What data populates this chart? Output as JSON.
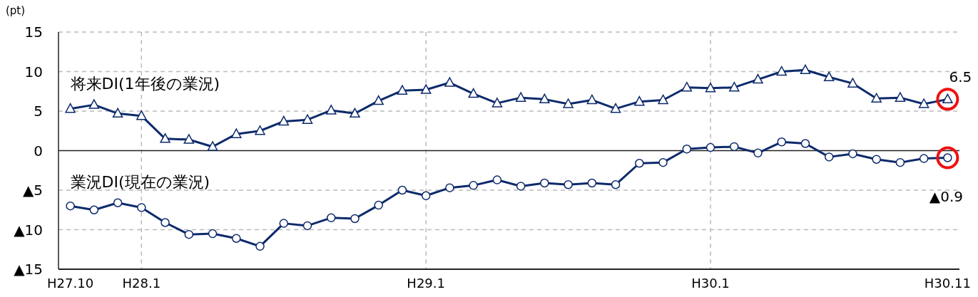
{
  "chart_data": {
    "type": "line",
    "categories": [
      "H27.10",
      null,
      null,
      "H28.1",
      null,
      null,
      null,
      null,
      null,
      null,
      null,
      null,
      null,
      null,
      null,
      "H29.1",
      null,
      null,
      null,
      null,
      null,
      null,
      null,
      null,
      null,
      null,
      null,
      "H30.1",
      null,
      null,
      null,
      null,
      null,
      null,
      null,
      null,
      null,
      "H30.11"
    ],
    "series": [
      {
        "name": "将来DI(1年後の業況)",
        "color": "#0d2a6b",
        "marker": "triangle",
        "values": [
          5.3,
          5.8,
          4.7,
          4.4,
          1.5,
          1.4,
          0.5,
          2.1,
          2.5,
          3.7,
          3.9,
          5.1,
          4.7,
          6.3,
          7.6,
          7.7,
          8.6,
          7.2,
          6.0,
          6.7,
          6.5,
          5.9,
          6.4,
          5.3,
          6.2,
          6.4,
          8.0,
          7.9,
          8.0,
          9.0,
          10.0,
          10.2,
          9.3,
          8.5,
          6.6,
          6.7,
          5.9,
          6.5
        ]
      },
      {
        "name": "業況DI(現在の業況)",
        "color": "#0d2a6b",
        "marker": "circle",
        "values": [
          -7.0,
          -7.5,
          -6.6,
          -7.2,
          -9.1,
          -10.6,
          -10.5,
          -11.1,
          -12.1,
          -9.2,
          -9.5,
          -8.5,
          -8.6,
          -6.9,
          -5.0,
          -5.7,
          -4.7,
          -4.4,
          -3.7,
          -4.5,
          -4.1,
          -4.3,
          -4.1,
          -4.3,
          -1.6,
          -1.5,
          0.2,
          0.4,
          0.5,
          -0.3,
          1.1,
          0.9,
          -0.8,
          -0.4,
          -1.1,
          -1.5,
          -1.0,
          -0.9
        ]
      }
    ],
    "ylim": [
      -15,
      15
    ],
    "yticks": [
      {
        "value": -15,
        "label": "▲15"
      },
      {
        "value": -10,
        "label": "▲10"
      },
      {
        "value": -5,
        "label": "▲5"
      },
      0,
      5,
      10,
      15
    ],
    "ylabel": "(pt)",
    "grid": true,
    "annotations": [
      {
        "text": "6.5",
        "x": "H30.11",
        "y": 6.5
      },
      {
        "text": "▲0.9",
        "x": "H30.11",
        "y": -0.9
      }
    ]
  }
}
